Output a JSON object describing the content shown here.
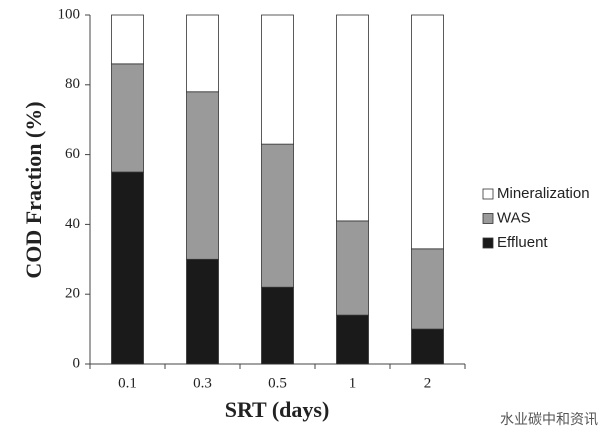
{
  "chart_data": {
    "type": "stacked_bar",
    "x_label": "SRT (days)",
    "y_label": "COD Fraction (%)",
    "categories": [
      "0.1",
      "0.3",
      "0.5",
      "1",
      "2"
    ],
    "series": [
      {
        "name": "Effluent",
        "color": "#1a1a1a",
        "values": [
          55,
          30,
          22,
          14,
          10
        ]
      },
      {
        "name": "WAS",
        "color": "#9a9a9a",
        "values": [
          31,
          48,
          41,
          27,
          23
        ]
      },
      {
        "name": "Mineralization",
        "color": "#ffffff",
        "values": [
          14,
          22,
          37,
          59,
          67
        ]
      }
    ],
    "ylim": [
      0,
      100
    ],
    "yticks": [
      0,
      20,
      40,
      60,
      80,
      100
    ],
    "legend": "right"
  },
  "watermark": "水业碳中和资讯"
}
